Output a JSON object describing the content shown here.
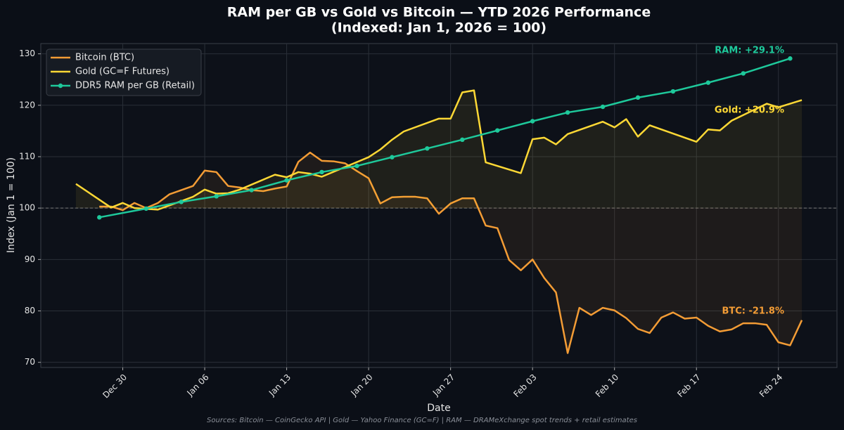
{
  "chart_data": {
    "type": "line",
    "title": "RAM per GB vs Gold vs Bitcoin — YTD 2026 Performance",
    "subtitle": "(Indexed: Jan 1, 2026 = 100)",
    "x_label": "Date",
    "y_label": "Index (Jan 1 = 100)",
    "source": "Sources: Bitcoin — CoinGecko API | Gold — Yahoo Finance (GC=F) | RAM — DRAMeXchange spot trends + retail estimates",
    "xlim": [
      "Dec 23",
      "Mar 01"
    ],
    "xticks": [
      "Dec 30",
      "Jan 06",
      "Jan 13",
      "Jan 20",
      "Jan 27",
      "Feb 03",
      "Feb 10",
      "Feb 17",
      "Feb 24"
    ],
    "ylim": [
      69,
      132
    ],
    "yticks": [
      70,
      80,
      90,
      100,
      110,
      120,
      130
    ],
    "grid": true,
    "baseline": 100,
    "legend": "upper left",
    "series": [
      {
        "name": "Bitcoin (BTC)",
        "color": "#f39c35",
        "fill": true,
        "markers": false,
        "x": [
          "Dec 28",
          "Dec 29",
          "Dec 30",
          "Dec 31",
          "Jan 01",
          "Jan 02",
          "Jan 03",
          "Jan 04",
          "Jan 05",
          "Jan 06",
          "Jan 07",
          "Jan 08",
          "Jan 09",
          "Jan 10",
          "Jan 11",
          "Jan 12",
          "Jan 13",
          "Jan 14",
          "Jan 15",
          "Jan 16",
          "Jan 17",
          "Jan 18",
          "Jan 19",
          "Jan 20",
          "Jan 21",
          "Jan 22",
          "Jan 23",
          "Jan 24",
          "Jan 25",
          "Jan 26",
          "Jan 27",
          "Jan 28",
          "Jan 29",
          "Jan 30",
          "Jan 31",
          "Feb 01",
          "Feb 02",
          "Feb 03",
          "Feb 04",
          "Feb 05",
          "Feb 06",
          "Feb 07",
          "Feb 08",
          "Feb 09",
          "Feb 10",
          "Feb 11",
          "Feb 12",
          "Feb 13",
          "Feb 14",
          "Feb 15",
          "Feb 16",
          "Feb 17",
          "Feb 18",
          "Feb 19",
          "Feb 20",
          "Feb 21",
          "Feb 22",
          "Feb 23",
          "Feb 24",
          "Feb 25",
          "Feb 26"
        ],
        "values": [
          100.3,
          100.3,
          99.6,
          101.0,
          100.0,
          101.0,
          102.7,
          103.5,
          104.3,
          107.3,
          107.0,
          104.3,
          104.0,
          103.5,
          103.3,
          103.8,
          104.2,
          109.0,
          110.8,
          109.2,
          109.1,
          108.7,
          107.2,
          105.8,
          100.9,
          102.1,
          102.2,
          102.2,
          101.9,
          98.9,
          100.9,
          101.9,
          101.9,
          96.6,
          96.1,
          89.9,
          87.9,
          90.0,
          86.4,
          83.6,
          71.8,
          80.6,
          79.2,
          80.6,
          80.1,
          78.6,
          76.5,
          75.7,
          78.7,
          79.7,
          78.5,
          78.7,
          77.1,
          76.0,
          76.4,
          77.6,
          77.6,
          77.3,
          73.9,
          73.3,
          78.2
        ]
      },
      {
        "name": "Gold (GC=F Futures)",
        "color": "#fdd835",
        "fill": true,
        "markers": false,
        "x": [
          "Dec 26",
          "Dec 29",
          "Dec 30",
          "Dec 31",
          "Jan 02",
          "Jan 05",
          "Jan 06",
          "Jan 07",
          "Jan 08",
          "Jan 09",
          "Jan 12",
          "Jan 13",
          "Jan 14",
          "Jan 15",
          "Jan 16",
          "Jan 20",
          "Jan 21",
          "Jan 22",
          "Jan 23",
          "Jan 26",
          "Jan 27",
          "Jan 28",
          "Jan 29",
          "Jan 30",
          "Feb 02",
          "Feb 03",
          "Feb 04",
          "Feb 05",
          "Feb 06",
          "Feb 09",
          "Feb 10",
          "Feb 11",
          "Feb 12",
          "Feb 13",
          "Feb 17",
          "Feb 18",
          "Feb 19",
          "Feb 20",
          "Feb 23",
          "Feb 24",
          "Feb 26"
        ],
        "values": [
          104.7,
          100.1,
          101.0,
          100.0,
          99.7,
          102.2,
          103.6,
          102.8,
          102.9,
          103.6,
          106.5,
          106.0,
          107.0,
          106.7,
          106.1,
          109.9,
          111.4,
          113.3,
          114.9,
          117.4,
          117.4,
          122.5,
          122.9,
          108.9,
          106.8,
          113.4,
          113.7,
          112.4,
          114.4,
          116.8,
          115.7,
          117.3,
          113.9,
          116.1,
          112.9,
          115.3,
          115.1,
          117.0,
          120.3,
          119.6,
          121.0
        ]
      },
      {
        "name": "DDR5 RAM per GB (Retail)",
        "color": "#1ec99b",
        "fill": false,
        "markers": true,
        "x": [
          "Dec 28",
          "Jan 01",
          "Jan 04",
          "Jan 07",
          "Jan 10",
          "Jan 13",
          "Jan 16",
          "Jan 19",
          "Jan 22",
          "Jan 25",
          "Jan 28",
          "Jan 31",
          "Feb 03",
          "Feb 06",
          "Feb 09",
          "Feb 12",
          "Feb 15",
          "Feb 18",
          "Feb 21",
          "Feb 25"
        ],
        "values": [
          98.2,
          99.9,
          101.2,
          102.3,
          103.5,
          105.4,
          107.0,
          108.2,
          109.9,
          111.6,
          113.3,
          115.1,
          116.9,
          118.6,
          119.7,
          121.5,
          122.7,
          124.4,
          126.2,
          129.1
        ]
      }
    ],
    "annotations": [
      {
        "text": "RAM: +29.1%",
        "color": "#1ec99b"
      },
      {
        "text": "Gold: +20.9%",
        "color": "#fdd835"
      },
      {
        "text": "BTC: -21.8%",
        "color": "#f39c35"
      }
    ]
  }
}
